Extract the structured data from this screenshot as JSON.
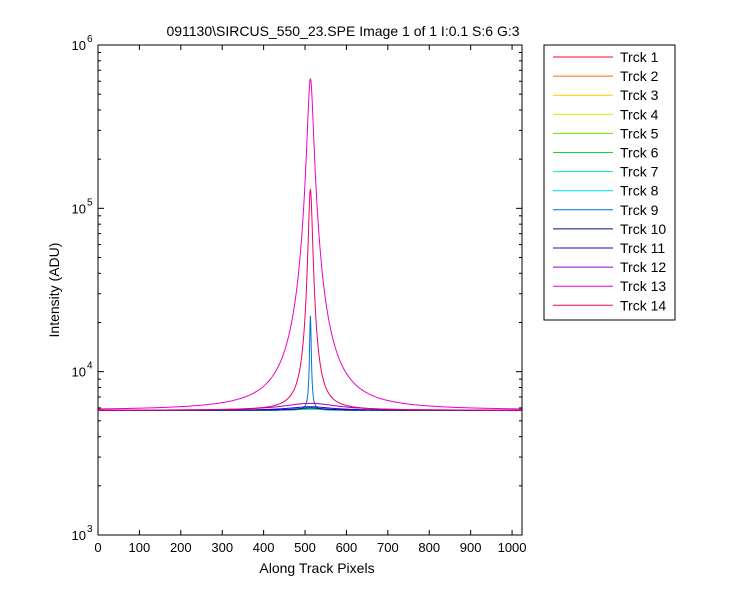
{
  "chart_data": {
    "type": "line",
    "title": "091130\\SIRCUS_550_23.SPE  Image 1 of 1  I:0.1  S:6  G:3",
    "xlabel": "Along Track Pixels",
    "ylabel": "Intensity (ADU)",
    "xlim": [
      0,
      1024
    ],
    "ylim": [
      1000,
      1000000
    ],
    "yscale": "log",
    "x_ticks": [
      "0",
      "100",
      "200",
      "300",
      "400",
      "500",
      "600",
      "700",
      "800",
      "900",
      "1000"
    ],
    "y_ticks": [
      {
        "base": "10",
        "exp": "3"
      },
      {
        "base": "10",
        "exp": "4"
      },
      {
        "base": "10",
        "exp": "5"
      },
      {
        "base": "10",
        "exp": "6"
      }
    ],
    "grid": false,
    "legend_position": "outside-right",
    "baseline": 5800,
    "series": [
      {
        "name": "Trck 1",
        "color": "#ff0033",
        "peak": 5900,
        "width": 40
      },
      {
        "name": "Trck 2",
        "color": "#ff6600",
        "peak": 5900,
        "width": 40
      },
      {
        "name": "Trck 3",
        "color": "#ffcc00",
        "peak": 5900,
        "width": 40
      },
      {
        "name": "Trck 4",
        "color": "#ccee00",
        "peak": 5900,
        "width": 40
      },
      {
        "name": "Trck 5",
        "color": "#66dd00",
        "peak": 5900,
        "width": 40
      },
      {
        "name": "Trck 6",
        "color": "#00dd33",
        "peak": 5900,
        "width": 40
      },
      {
        "name": "Trck 7",
        "color": "#00ee99",
        "peak": 5900,
        "width": 40
      },
      {
        "name": "Trck 8",
        "color": "#00dddd",
        "peak": 5950,
        "width": 40
      },
      {
        "name": "Trck 9",
        "color": "#0077cc",
        "peak": 22000,
        "width": 2
      },
      {
        "name": "Trck 10",
        "color": "#001188",
        "peak": 6000,
        "width": 40
      },
      {
        "name": "Trck 11",
        "color": "#3300cc",
        "peak": 6100,
        "width": 60
      },
      {
        "name": "Trck 12",
        "color": "#9900cc",
        "peak": 6400,
        "width": 80
      },
      {
        "name": "Trck 13",
        "color": "#ee00cc",
        "peak": 620000,
        "width": 7
      },
      {
        "name": "Trck 14",
        "color": "#ee0066",
        "peak": 130000,
        "width": 5
      }
    ],
    "peak_center": 513
  }
}
